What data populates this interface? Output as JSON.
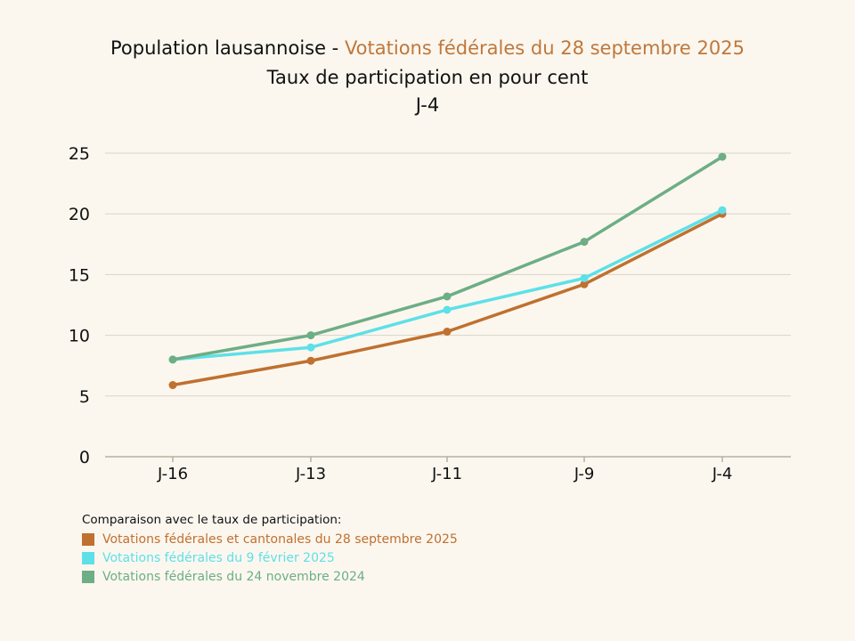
{
  "title": {
    "prefix": "Population lausannoise - ",
    "highlight": "Votations fédérales du 28 septembre 2025",
    "line2": "Taux de participation en pour cent",
    "line3": "J-4"
  },
  "colors": {
    "accent": "#c0773a",
    "grid": "#d9d4c8",
    "axis": "#b7b09f",
    "background": "#fbf7ef"
  },
  "legend": {
    "title": "Comparaison avec le taux de participation:"
  },
  "chart_data": {
    "type": "line",
    "categories": [
      "J-16",
      "J-13",
      "J-11",
      "J-9",
      "J-4"
    ],
    "ylim": [
      0,
      25
    ],
    "yticks": [
      0,
      5,
      10,
      15,
      20,
      25
    ],
    "grid": true,
    "legend_position": "bottom-left",
    "series": [
      {
        "name": "Votations fédérales et cantonales du 28 septembre 2025",
        "color": "#c0702f",
        "values": [
          5.9,
          7.9,
          10.3,
          14.2,
          20.0
        ]
      },
      {
        "name": "Votations fédérales du 9 février 2025",
        "color": "#5ee0e8",
        "values": [
          8.0,
          9.0,
          12.1,
          14.7,
          20.3
        ]
      },
      {
        "name": "Votations fédérales du 24 novembre 2024",
        "color": "#6dae85",
        "values": [
          8.0,
          10.0,
          13.2,
          17.7,
          24.7
        ]
      }
    ]
  }
}
